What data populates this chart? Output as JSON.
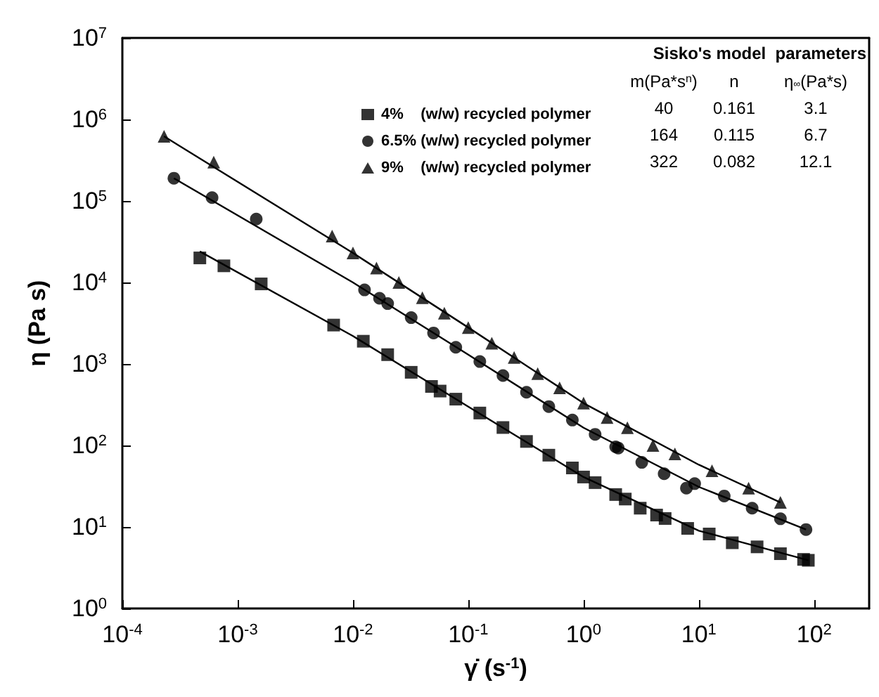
{
  "chart_data": {
    "type": "scatter",
    "xlabel": "γ̇ (s$^{-1}$)",
    "ylabel": "η (Pa s)",
    "log": "xy",
    "grid": false,
    "legend": "top right",
    "xlim": [
      0.0001,
      300
    ],
    "ylim": [
      1,
      10000000
    ],
    "xticks": [
      {
        "value": 0.0001,
        "label": "10$^{-4}$"
      },
      {
        "value": 0.001,
        "label": "10$^{-3}$"
      },
      {
        "value": 0.01,
        "label": "10$^{-2}$"
      },
      {
        "value": 0.1,
        "label": "10$^{-1}$"
      },
      {
        "value": 1,
        "label": "10$^{0}$"
      },
      {
        "value": 10,
        "label": "10$^{1}$"
      },
      {
        "value": 100,
        "label": "10$^{2}$"
      }
    ],
    "yticks": [
      {
        "value": 1,
        "label": "10$^{0}$"
      },
      {
        "value": 10,
        "label": "10$^{1}$"
      },
      {
        "value": 100,
        "label": "10$^{2}$"
      },
      {
        "value": 1000,
        "label": "10$^{3}$"
      },
      {
        "value": 10000,
        "label": "10$^{4}$"
      },
      {
        "value": 100000,
        "label": "10$^{5}$"
      },
      {
        "value": 1000000,
        "label": "10$^{6}$"
      },
      {
        "value": 10000000,
        "label": "10$^{7}$"
      }
    ],
    "annotations": [
      "Sisko's model  parameters",
      "m(Pa*s$^{n}$)",
      "n",
      "η$_{∞}$(Pa*s)",
      "40",
      "0.161",
      "3.1",
      "164",
      "0.115",
      "6.7",
      "322",
      "0.082",
      "12.1"
    ],
    "series": [
      {
        "name": "4%    (w/w) recycled polymer",
        "type": "scatter",
        "marker": "square",
        "color": "#000000",
        "x": [
          0.00047,
          0.00076,
          0.0016,
          0.0068,
          0.0123,
          0.02,
          0.032,
          0.048,
          0.057,
          0.078,
          0.126,
          0.2,
          0.32,
          0.5,
          0.8,
          1.0,
          1.26,
          1.9,
          2.3,
          3.1,
          4.3,
          5.1,
          8.0,
          12.3,
          19.5,
          32,
          51,
          81,
          89
        ],
        "values": [
          20000,
          16000,
          9600,
          3000,
          1900,
          1300,
          790,
          530,
          465,
          370,
          250,
          166,
          112,
          76,
          53,
          41,
          35,
          25,
          22,
          17,
          14,
          12.7,
          9.6,
          8.2,
          6.4,
          5.7,
          4.7,
          4.0,
          3.9
        ]
      },
      {
        "name": "6.5% (w/w) recycled polymer",
        "type": "scatter",
        "marker": "circle",
        "color": "#000000",
        "x": [
          0.00028,
          0.0006,
          0.00145,
          0.0126,
          0.017,
          0.02,
          0.032,
          0.05,
          0.078,
          0.126,
          0.2,
          0.32,
          0.5,
          0.8,
          1.26,
          1.9,
          2.0,
          3.2,
          5.0,
          7.8,
          9.2,
          16.6,
          29,
          51,
          85
        ],
        "values": [
          190000,
          110000,
          60000,
          8100,
          6400,
          5500,
          3700,
          2400,
          1600,
          1070,
          720,
          450,
          300,
          205,
          137,
          96,
          93,
          62,
          45,
          30,
          34,
          24,
          17,
          12.6,
          9.3
        ]
      },
      {
        "name": "9%    (w/w) recycled polymer",
        "type": "scatter",
        "marker": "triangle",
        "color": "#000000",
        "x": [
          0.00023,
          0.00062,
          0.0066,
          0.01,
          0.016,
          0.025,
          0.04,
          0.062,
          0.1,
          0.16,
          0.25,
          0.4,
          0.62,
          1.0,
          1.6,
          2.4,
          4.0,
          6.2,
          13,
          27,
          51
        ],
        "values": [
          620000,
          300000,
          37000,
          23000,
          15000,
          10000,
          6500,
          4200,
          2800,
          1800,
          1200,
          760,
          510,
          330,
          220,
          165,
          100,
          79,
          49,
          30,
          20
        ]
      },
      {
        "type": "line",
        "marker": "none",
        "color": "#000000",
        "x": [
          0.00047,
          0.01,
          0.1,
          1,
          10,
          89
        ],
        "values": [
          24000,
          2200,
          300,
          41,
          9.0,
          3.9
        ]
      },
      {
        "type": "line",
        "marker": "none",
        "color": "#000000",
        "x": [
          0.00028,
          0.01,
          0.1,
          1,
          10,
          85
        ],
        "values": [
          190000,
          10000,
          1300,
          165,
          31,
          9.3
        ]
      },
      {
        "type": "line",
        "marker": "none",
        "color": "#000000",
        "x": [
          0.00023,
          0.01,
          0.1,
          1,
          10,
          51
        ],
        "values": [
          620000,
          23000,
          2800,
          330,
          58,
          20
        ]
      }
    ]
  }
}
